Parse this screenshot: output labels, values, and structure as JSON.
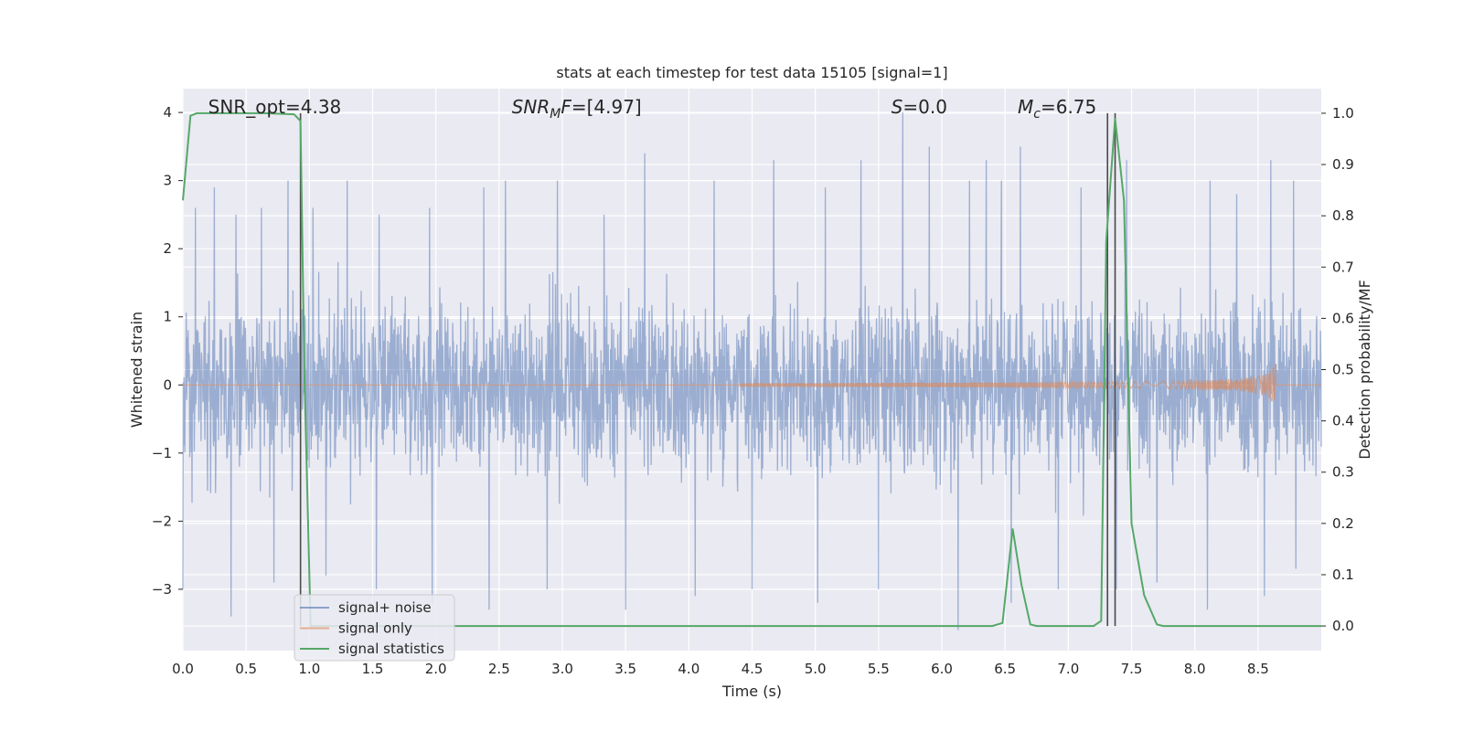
{
  "chart_data": {
    "type": "line",
    "title": "stats at each timestep for test data 15105 [signal=1]",
    "xlabel": "Time (s)",
    "ylabel": "Whitened strain",
    "y2label": "Detection probability/MF",
    "xlim": [
      0,
      9.0
    ],
    "ylim": [
      -3.9,
      4.35
    ],
    "y2lim": [
      -0.048,
      1.048
    ],
    "xticks": [
      0.0,
      0.5,
      1.0,
      1.5,
      2.0,
      2.5,
      3.0,
      3.5,
      4.0,
      4.5,
      5.0,
      5.5,
      6.0,
      6.5,
      7.0,
      7.5,
      8.0,
      8.5
    ],
    "xtick_labels": [
      "0.0",
      "0.5",
      "1.0",
      "1.5",
      "2.0",
      "2.5",
      "3.0",
      "3.5",
      "4.0",
      "4.5",
      "5.0",
      "5.5",
      "6.0",
      "6.5",
      "7.0",
      "7.5",
      "8.0",
      "8.5"
    ],
    "yticks": [
      -3,
      -2,
      -1,
      0,
      1,
      2,
      3,
      4
    ],
    "ytick_labels": [
      "−3",
      "−2",
      "−1",
      "0",
      "1",
      "2",
      "3",
      "4"
    ],
    "y2ticks": [
      0.0,
      0.1,
      0.2,
      0.3,
      0.4,
      0.5,
      0.6,
      0.7,
      0.8,
      0.9,
      1.0
    ],
    "y2tick_labels": [
      "0.0",
      "0.1",
      "0.2",
      "0.3",
      "0.4",
      "0.5",
      "0.6",
      "0.7",
      "0.8",
      "0.9",
      "1.0"
    ],
    "grid": true,
    "legend_position": "lower-left",
    "annotations": [
      {
        "prefix": "SNR_opt",
        "italic": false,
        "sub": "",
        "suffix": "=4.38",
        "x": 0.2
      },
      {
        "prefix": "SNR",
        "italic": true,
        "sub": "M",
        "suffix": "F=[4.97]",
        "x": 2.6
      },
      {
        "prefix": "S",
        "italic": true,
        "sub": "",
        "suffix": "=0.0",
        "x": 5.6
      },
      {
        "prefix": "M",
        "italic": true,
        "sub": "c",
        "suffix": "=6.75",
        "x": 6.6
      }
    ],
    "vertical_lines": [
      0.93,
      7.31,
      7.37
    ],
    "series": [
      {
        "name": "signal+ noise",
        "color": "#4c72b0",
        "kind": "noise",
        "x_range": [
          0,
          9.0
        ],
        "envelope": 1.75,
        "peaks": [
          [
            0.1,
            2.6
          ],
          [
            0.25,
            2.9
          ],
          [
            0.42,
            2.5
          ],
          [
            0.62,
            2.6
          ],
          [
            0.83,
            3.0
          ],
          [
            1.03,
            2.6
          ],
          [
            1.3,
            3.0
          ],
          [
            1.55,
            2.5
          ],
          [
            1.95,
            2.6
          ],
          [
            2.38,
            2.9
          ],
          [
            2.55,
            3.0
          ],
          [
            2.96,
            3.0
          ],
          [
            3.33,
            2.5
          ],
          [
            3.65,
            3.4
          ],
          [
            4.2,
            3.0
          ],
          [
            4.67,
            3.3
          ],
          [
            5.08,
            2.9
          ],
          [
            5.36,
            3.3
          ],
          [
            5.69,
            4.0
          ],
          [
            5.9,
            3.5
          ],
          [
            6.22,
            3.0
          ],
          [
            6.35,
            3.3
          ],
          [
            6.47,
            3.0
          ],
          [
            6.62,
            3.5
          ],
          [
            7.1,
            2.9
          ],
          [
            7.46,
            3.3
          ],
          [
            7.7,
            2.9
          ],
          [
            8.12,
            3.0
          ],
          [
            8.33,
            2.8
          ],
          [
            8.6,
            3.3
          ],
          [
            8.78,
            3.0
          ]
        ],
        "troughs": [
          [
            0.0,
            -3.0
          ],
          [
            0.38,
            -3.4
          ],
          [
            0.72,
            -2.9
          ],
          [
            1.13,
            -2.8
          ],
          [
            1.53,
            -3.0
          ],
          [
            1.97,
            -3.2
          ],
          [
            2.42,
            -3.3
          ],
          [
            2.88,
            -3.0
          ],
          [
            3.5,
            -3.3
          ],
          [
            4.05,
            -3.1
          ],
          [
            4.5,
            -3.0
          ],
          [
            5.02,
            -3.2
          ],
          [
            5.5,
            -3.0
          ],
          [
            6.13,
            -3.6
          ],
          [
            6.55,
            -3.2
          ],
          [
            6.92,
            -3.0
          ],
          [
            7.38,
            -3.0
          ],
          [
            7.7,
            -2.9
          ],
          [
            8.1,
            -3.3
          ],
          [
            8.55,
            -3.1
          ],
          [
            8.8,
            -2.7
          ]
        ]
      },
      {
        "name": "signal only",
        "color": "#dd8452",
        "kind": "chirp",
        "start": 4.4,
        "end": 8.64,
        "max_amp": 0.42
      },
      {
        "name": "signal statistics",
        "color": "#55a868",
        "kind": "line",
        "axis": "right",
        "x": [
          0.0,
          0.06,
          0.11,
          0.35,
          0.65,
          0.88,
          0.93,
          0.96,
          1.01,
          1.03,
          6.4,
          6.48,
          6.56,
          6.63,
          6.7,
          6.75,
          7.2,
          7.26,
          7.3,
          7.37,
          7.44,
          7.5,
          7.6,
          7.7,
          7.75,
          9.0
        ],
        "y": [
          0.83,
          0.995,
          1.0,
          1.0,
          1.0,
          0.998,
          0.985,
          0.5,
          0.0,
          0.0,
          0.0,
          0.006,
          0.19,
          0.08,
          0.003,
          0.0,
          0.0,
          0.01,
          0.75,
          0.99,
          0.83,
          0.2,
          0.06,
          0.003,
          0.0,
          0.0
        ]
      }
    ]
  }
}
